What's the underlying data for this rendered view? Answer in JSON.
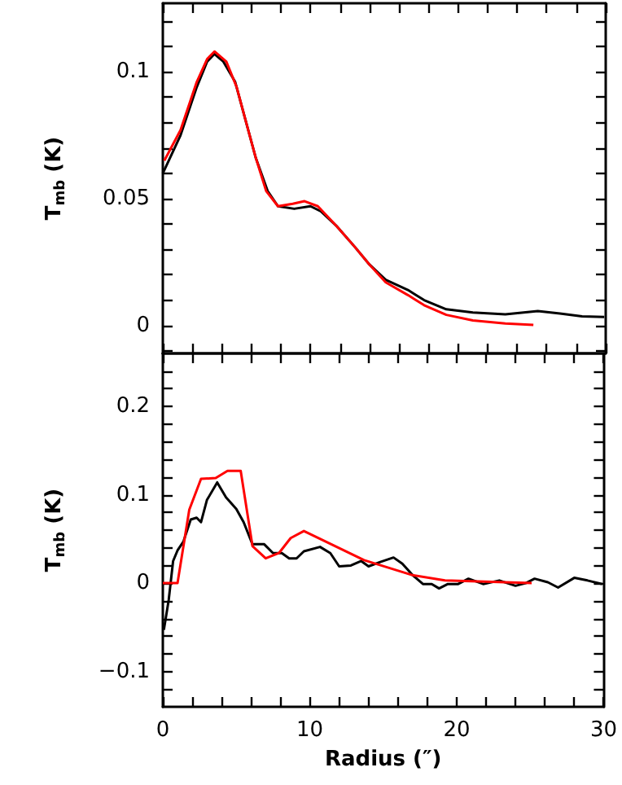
{
  "chart_data": [
    {
      "type": "line",
      "ylabel": "T$_{mb}$ (K)",
      "xlim": [
        0,
        30
      ],
      "ylim": [
        -0.011,
        0.127
      ],
      "tick_labels": "y",
      "marker": "none",
      "line_style": "solid",
      "xticks": [
        0,
        {
          "value": 2,
          "label": null
        },
        {
          "value": 4,
          "label": null
        },
        {
          "value": 6,
          "label": null
        },
        {
          "value": 8,
          "label": null
        },
        10,
        {
          "value": 12,
          "label": null
        },
        {
          "value": 14,
          "label": null
        },
        {
          "value": 16,
          "label": null
        },
        {
          "value": 18,
          "label": null
        },
        20,
        {
          "value": 22,
          "label": null
        },
        {
          "value": 24,
          "label": null
        },
        {
          "value": 26,
          "label": null
        },
        {
          "value": 28,
          "label": null
        },
        30
      ],
      "yticks": [
        {
          "value": -0.01,
          "label": null
        },
        0,
        {
          "value": 0.01,
          "label": null
        },
        {
          "value": 0.02,
          "label": null
        },
        {
          "value": 0.03,
          "label": null
        },
        {
          "value": 0.04,
          "label": null
        },
        0.05,
        {
          "value": 0.06,
          "label": null
        },
        {
          "value": 0.07,
          "label": null
        },
        {
          "value": 0.08,
          "label": null
        },
        {
          "value": 0.09,
          "label": null
        },
        0.1,
        {
          "value": 0.11,
          "label": null
        },
        {
          "value": 0.12,
          "label": null
        }
      ],
      "series": [
        {
          "color": "#000000",
          "x": [
            0,
            1.2,
            2.3,
            3.0,
            3.5,
            4.1,
            4.9,
            5.6,
            6.3,
            7.1,
            7.8,
            8.9,
            10.0,
            10.7,
            11.8,
            13.0,
            14.0,
            15.1,
            16.6,
            17.7,
            19.2,
            21.0,
            23.2,
            25.4,
            26.9,
            28.4,
            29.9
          ],
          "values": [
            0.06,
            0.075,
            0.094,
            0.104,
            0.107,
            0.104,
            0.096,
            0.081,
            0.066,
            0.053,
            0.047,
            0.046,
            0.047,
            0.045,
            0.039,
            0.031,
            0.024,
            0.018,
            0.014,
            0.01,
            0.0064,
            0.0051,
            0.0044,
            0.0057,
            0.0047,
            0.0036,
            0.0034
          ]
        },
        {
          "color": "#ff0000",
          "x": [
            0.1,
            1.2,
            2.3,
            3.0,
            3.5,
            4.3,
            5.0,
            5.6,
            6.3,
            7.0,
            7.8,
            8.8,
            9.6,
            10.5,
            11.8,
            13.0,
            14.0,
            15.1,
            16.6,
            17.7,
            19.2,
            21.0,
            23.2,
            25.1
          ],
          "values": [
            0.065,
            0.077,
            0.096,
            0.105,
            0.108,
            0.104,
            0.094,
            0.081,
            0.066,
            0.053,
            0.047,
            0.048,
            0.049,
            0.047,
            0.039,
            0.031,
            0.024,
            0.017,
            0.012,
            0.008,
            0.0042,
            0.002,
            0.0008,
            0.0002
          ]
        }
      ]
    },
    {
      "type": "line",
      "ylabel": "T$_{mb}$ (K)",
      "xlabel": "Radius (″)",
      "xlim": [
        0,
        30
      ],
      "ylim": [
        -0.14,
        0.26
      ],
      "marker": "none",
      "line_style": "solid",
      "xticks": [
        0,
        {
          "value": 2,
          "label": null
        },
        {
          "value": 4,
          "label": null
        },
        {
          "value": 6,
          "label": null
        },
        {
          "value": 8,
          "label": null
        },
        10,
        {
          "value": 12,
          "label": null
        },
        {
          "value": 14,
          "label": null
        },
        {
          "value": 16,
          "label": null
        },
        {
          "value": 18,
          "label": null
        },
        20,
        {
          "value": 22,
          "label": null
        },
        {
          "value": 24,
          "label": null
        },
        {
          "value": 26,
          "label": null
        },
        {
          "value": 28,
          "label": null
        },
        30
      ],
      "yticks": [
        {
          "value": -0.12,
          "label": null
        },
        -0.1,
        {
          "value": -0.08,
          "label": null
        },
        {
          "value": -0.06,
          "label": null
        },
        {
          "value": -0.04,
          "label": null
        },
        {
          "value": -0.02,
          "label": null
        },
        0,
        {
          "value": 0.02,
          "label": null
        },
        {
          "value": 0.04,
          "label": null
        },
        {
          "value": 0.06,
          "label": null
        },
        {
          "value": 0.08,
          "label": null
        },
        0.1,
        {
          "value": 0.12,
          "label": null
        },
        {
          "value": 0.14,
          "label": null
        },
        {
          "value": 0.16,
          "label": null
        },
        {
          "value": 0.18,
          "label": null
        },
        0.2,
        {
          "value": 0.22,
          "label": null
        },
        {
          "value": 0.24,
          "label": null
        }
      ],
      "series": [
        {
          "color": "#000000",
          "x": [
            0.07,
            0.4,
            0.7,
            1.0,
            1.4,
            1.9,
            2.3,
            2.6,
            3.0,
            3.7,
            4.3,
            5.0,
            5.5,
            6.1,
            6.9,
            7.5,
            8.1,
            8.6,
            9.1,
            9.6,
            10.7,
            11.4,
            12.0,
            12.8,
            13.5,
            14.0,
            14.8,
            15.7,
            16.3,
            17.0,
            17.7,
            18.3,
            18.8,
            19.4,
            20.1,
            20.8,
            21.8,
            22.9,
            24.0,
            24.7,
            25.3,
            26.2,
            26.9,
            28.0,
            28.9,
            29.9
          ],
          "values": [
            -0.053,
            -0.019,
            0.025,
            0.037,
            0.047,
            0.072,
            0.074,
            0.069,
            0.094,
            0.114,
            0.097,
            0.084,
            0.069,
            0.044,
            0.044,
            0.034,
            0.034,
            0.028,
            0.028,
            0.036,
            0.041,
            0.034,
            0.019,
            0.02,
            0.025,
            0.019,
            0.024,
            0.029,
            0.022,
            0.009,
            -0.001,
            -0.001,
            -0.006,
            -0.001,
            -0.001,
            0.005,
            -0.001,
            0.003,
            -0.003,
            0,
            0.005,
            0.001,
            -0.005,
            0.006,
            0.003,
            -0.001
          ]
        },
        {
          "color": "#ff0000",
          "x": [
            0,
            1.0,
            1.8,
            2.6,
            3.6,
            4.4,
            5.3,
            6.1,
            7.0,
            7.9,
            8.7,
            9.6,
            13.7,
            17.0,
            19.2,
            25.1
          ],
          "values": [
            0,
            0,
            0.083,
            0.118,
            0.119,
            0.127,
            0.127,
            0.042,
            0.028,
            0.034,
            0.051,
            0.059,
            0.026,
            0.009,
            0.003,
            0
          ]
        }
      ]
    }
  ]
}
